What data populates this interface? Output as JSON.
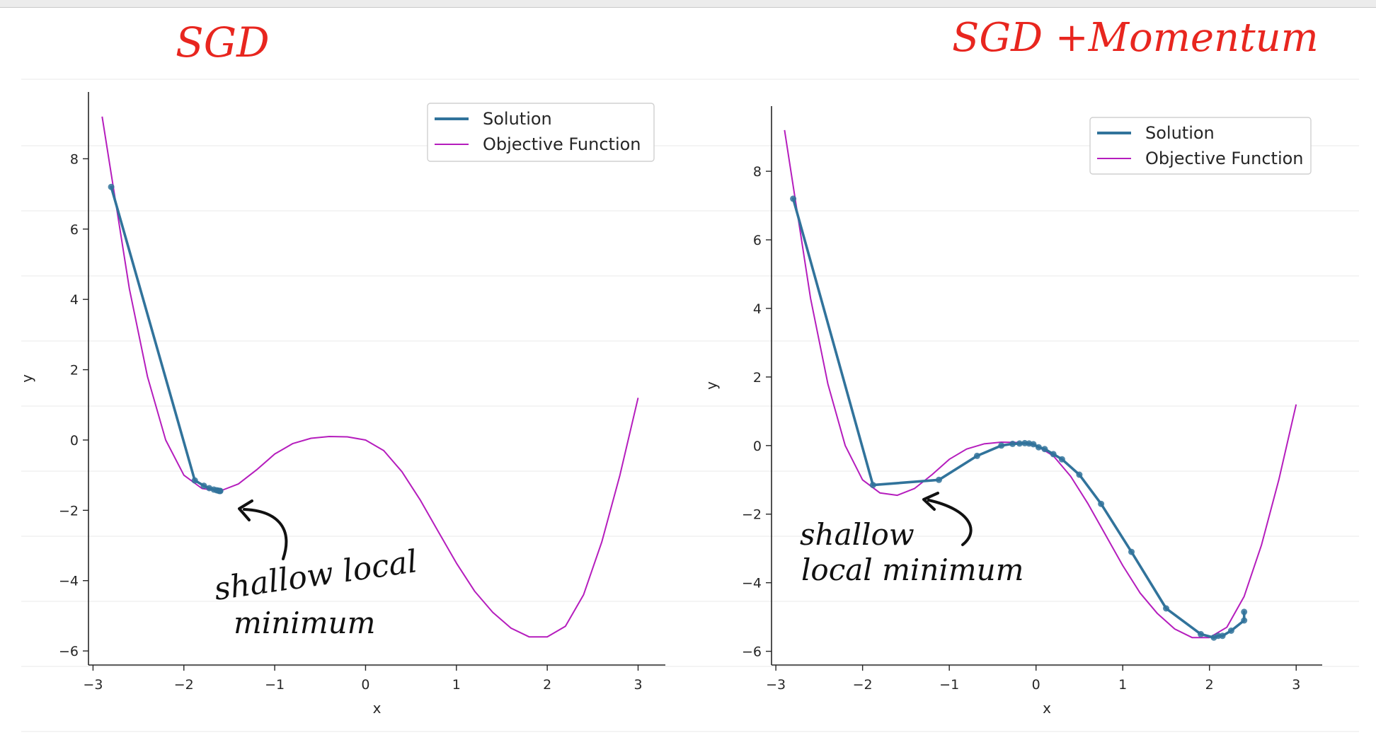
{
  "annotations": {
    "left_title": "SGD",
    "right_title": "SGD +Momentum",
    "left_note_line1": "shallow local",
    "left_note_line2": "minimum",
    "right_note_line1": "shallow",
    "right_note_line2": "local minimum"
  },
  "colors": {
    "solution": "#31739b",
    "objective": "#b51dbd",
    "handwriting_red": "#e8261f",
    "handwriting_black": "#111111"
  },
  "chart_data": [
    {
      "type": "line",
      "title": "",
      "xlabel": "x",
      "ylabel": "y",
      "xlim": [
        -3.05,
        3.3
      ],
      "ylim": [
        -6.4,
        9.9
      ],
      "xticks": [
        -3,
        -2,
        -1,
        0,
        1,
        2,
        3
      ],
      "xtick_labels": [
        "−3",
        "−2",
        "−1",
        "0",
        "1",
        "2",
        "3"
      ],
      "yticks": [
        -6,
        -4,
        -2,
        0,
        2,
        4,
        6,
        8
      ],
      "ytick_labels": [
        "−6",
        "−4",
        "−2",
        "0",
        "2",
        "4",
        "6",
        "8"
      ],
      "legend_position": "top-right",
      "series": [
        {
          "name": "Solution",
          "color": "#31739b",
          "x": [
            -2.8,
            -1.88,
            -1.78,
            -1.72,
            -1.67,
            -1.64,
            -1.62,
            -1.61,
            -1.6,
            -1.6
          ],
          "y": [
            7.2,
            -1.15,
            -1.3,
            -1.37,
            -1.41,
            -1.43,
            -1.44,
            -1.45,
            -1.45,
            -1.45
          ]
        },
        {
          "name": "Objective Function",
          "color": "#b51dbd",
          "x": [
            -2.9,
            -2.6,
            -2.4,
            -2.2,
            -2.0,
            -1.8,
            -1.6,
            -1.4,
            -1.2,
            -1.0,
            -0.8,
            -0.6,
            -0.4,
            -0.2,
            0.0,
            0.2,
            0.4,
            0.6,
            0.8,
            1.0,
            1.2,
            1.4,
            1.6,
            1.8,
            2.0,
            2.2,
            2.4,
            2.6,
            2.8,
            3.0
          ],
          "y": [
            9.2,
            4.3,
            1.8,
            0.0,
            -1.0,
            -1.38,
            -1.45,
            -1.25,
            -0.85,
            -0.4,
            -0.1,
            0.05,
            0.1,
            0.09,
            0.0,
            -0.3,
            -0.9,
            -1.7,
            -2.6,
            -3.5,
            -4.3,
            -4.9,
            -5.35,
            -5.6,
            -5.6,
            -5.3,
            -4.4,
            -2.9,
            -1.0,
            1.2
          ]
        }
      ]
    },
    {
      "type": "line",
      "title": "",
      "xlabel": "x",
      "ylabel": "y",
      "xlim": [
        -3.05,
        3.3
      ],
      "ylim": [
        -6.4,
        9.9
      ],
      "xticks": [
        -3,
        -2,
        -1,
        0,
        1,
        2,
        3
      ],
      "xtick_labels": [
        "−3",
        "−2",
        "−1",
        "0",
        "1",
        "2",
        "3"
      ],
      "yticks": [
        -6,
        -4,
        -2,
        0,
        2,
        4,
        6,
        8
      ],
      "ytick_labels": [
        "−6",
        "−4",
        "−2",
        "0",
        "2",
        "4",
        "6",
        "8"
      ],
      "legend_position": "top-right",
      "series": [
        {
          "name": "Solution",
          "color": "#31739b",
          "x": [
            -2.8,
            -1.88,
            -1.12,
            -0.68,
            -0.4,
            -0.27,
            -0.19,
            -0.13,
            -0.08,
            -0.03,
            0.03,
            0.1,
            0.2,
            0.3,
            0.5,
            0.75,
            1.1,
            1.5,
            1.9,
            2.05,
            2.1,
            2.15,
            2.25,
            2.4,
            2.4
          ],
          "y": [
            7.2,
            -1.15,
            -1.0,
            -0.3,
            0.0,
            0.05,
            0.06,
            0.07,
            0.06,
            0.04,
            -0.05,
            -0.1,
            -0.25,
            -0.4,
            -0.85,
            -1.7,
            -3.1,
            -4.75,
            -5.5,
            -5.6,
            -5.55,
            -5.55,
            -5.4,
            -5.1,
            -4.85
          ]
        },
        {
          "name": "Objective Function",
          "color": "#b51dbd",
          "x": [
            -2.9,
            -2.6,
            -2.4,
            -2.2,
            -2.0,
            -1.8,
            -1.6,
            -1.4,
            -1.2,
            -1.0,
            -0.8,
            -0.6,
            -0.4,
            -0.2,
            0.0,
            0.2,
            0.4,
            0.6,
            0.8,
            1.0,
            1.2,
            1.4,
            1.6,
            1.8,
            2.0,
            2.2,
            2.4,
            2.6,
            2.8,
            3.0
          ],
          "y": [
            9.2,
            4.3,
            1.8,
            0.0,
            -1.0,
            -1.38,
            -1.45,
            -1.25,
            -0.85,
            -0.4,
            -0.1,
            0.05,
            0.1,
            0.09,
            0.0,
            -0.3,
            -0.9,
            -1.7,
            -2.6,
            -3.5,
            -4.3,
            -4.9,
            -5.35,
            -5.6,
            -5.6,
            -5.3,
            -4.4,
            -2.9,
            -1.0,
            1.2
          ]
        }
      ]
    }
  ]
}
